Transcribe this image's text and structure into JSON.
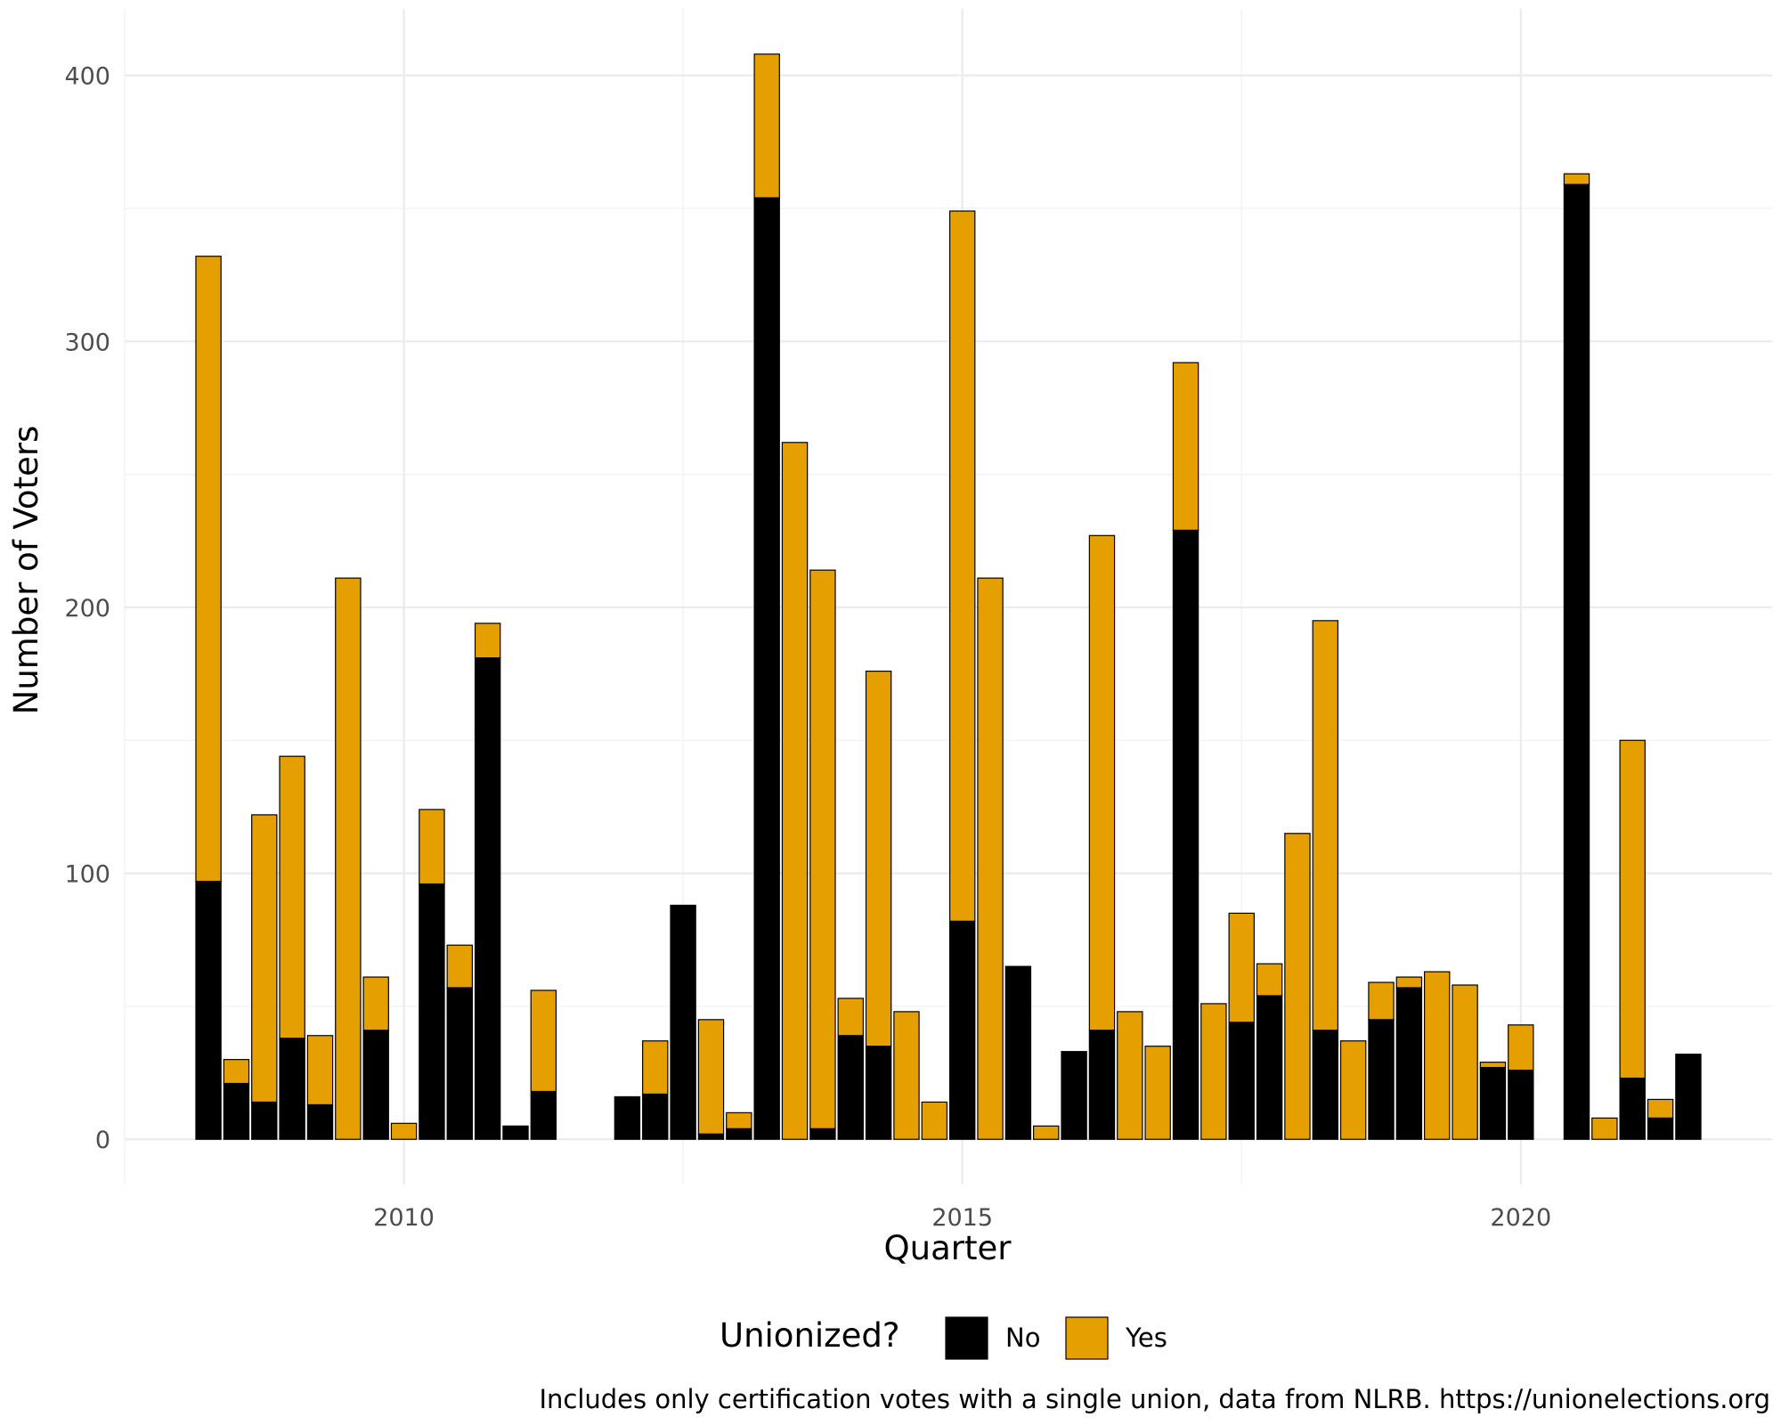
{
  "chart_data": {
    "type": "bar",
    "stacked": true,
    "xlabel": "Quarter",
    "ylabel": "Number of Voters",
    "x_tick_labels": [
      "2010",
      "2015",
      "2020"
    ],
    "x_tick_values": [
      2010,
      2015,
      2020
    ],
    "y_tick_labels": [
      "0",
      "100",
      "200",
      "300",
      "400"
    ],
    "y_tick_values": [
      0,
      100,
      200,
      300,
      400
    ],
    "xlim": [
      2007.5,
      2022.25
    ],
    "ylim": [
      -17,
      425
    ],
    "grid": true,
    "legend": {
      "title": "Unionized?",
      "position": "bottom",
      "items": [
        "No",
        "Yes"
      ]
    },
    "caption": "Includes only certification votes with a single union, data from NLRB. https://unionelections.org",
    "colors": {
      "No": "#000000",
      "Yes": "#E69F00",
      "bar_outline": "#000000"
    },
    "x": [
      2008.25,
      2008.5,
      2008.75,
      2009.0,
      2009.25,
      2009.5,
      2009.75,
      2010.0,
      2010.25,
      2010.5,
      2010.75,
      2011.0,
      2011.25,
      2012.0,
      2012.25,
      2012.5,
      2012.75,
      2013.0,
      2013.25,
      2013.5,
      2013.75,
      2014.0,
      2014.25,
      2014.5,
      2014.75,
      2015.0,
      2015.25,
      2015.5,
      2015.75,
      2016.0,
      2016.25,
      2016.5,
      2016.75,
      2017.0,
      2017.25,
      2017.5,
      2017.75,
      2018.0,
      2018.25,
      2018.5,
      2018.75,
      2019.0,
      2019.25,
      2019.5,
      2019.75,
      2020.0,
      2020.5,
      2020.75,
      2021.0,
      2021.25,
      2021.5
    ],
    "series": [
      {
        "name": "No",
        "values": [
          97,
          21,
          14,
          38,
          13,
          0,
          41,
          0,
          96,
          57,
          181,
          5,
          18,
          16,
          17,
          88,
          2,
          4,
          354,
          0,
          4,
          39,
          35,
          0,
          0,
          82,
          0,
          65,
          0,
          33,
          41,
          0,
          0,
          229,
          0,
          44,
          54,
          0,
          41,
          0,
          45,
          57,
          0,
          0,
          27,
          26,
          359,
          0,
          23,
          8,
          32
        ]
      },
      {
        "name": "Yes",
        "values": [
          235,
          9,
          108,
          106,
          26,
          211,
          20,
          6,
          28,
          16,
          13,
          0,
          38,
          0,
          20,
          0,
          43,
          6,
          54,
          262,
          210,
          14,
          141,
          48,
          14,
          267,
          211,
          0,
          5,
          0,
          186,
          48,
          35,
          63,
          51,
          41,
          12,
          115,
          154,
          37,
          14,
          4,
          63,
          58,
          2,
          17,
          4,
          8,
          127,
          7,
          0
        ]
      }
    ]
  }
}
